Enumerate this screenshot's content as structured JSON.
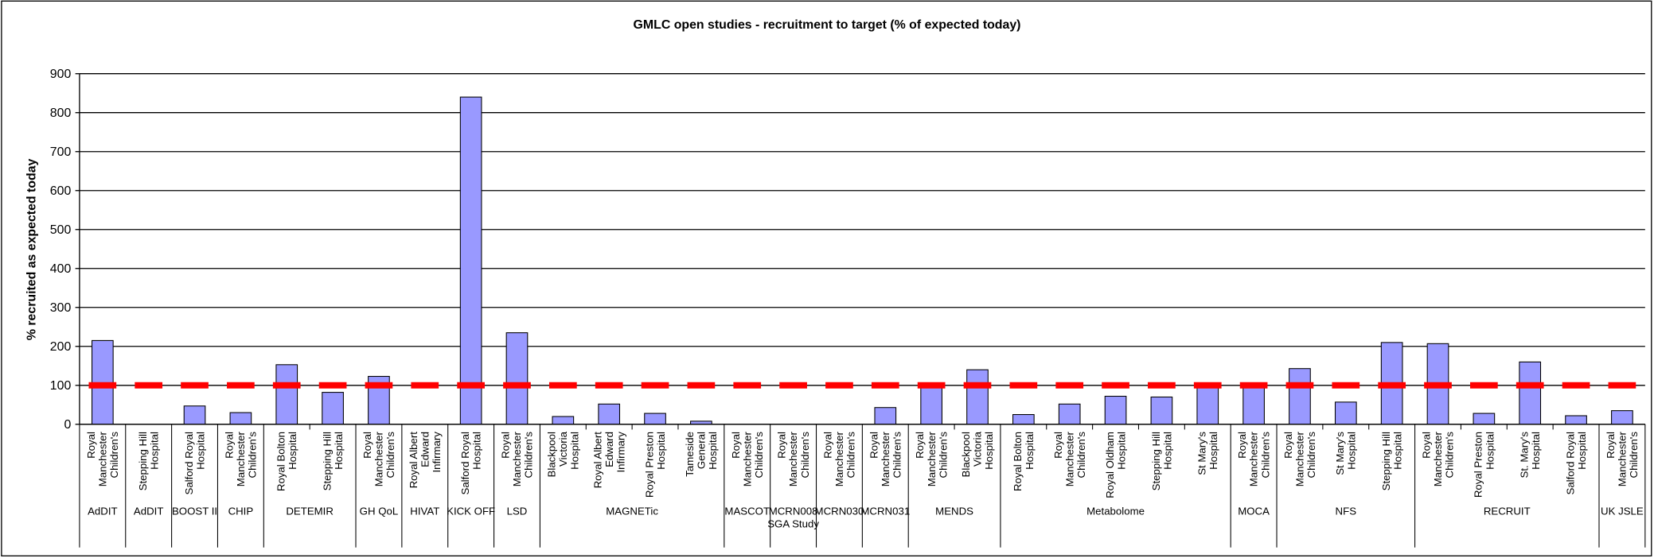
{
  "chart_data": {
    "type": "bar",
    "title": "GMLC open studies - recruitment to target (% of expected today)",
    "y_label": "% recruited as expected today",
    "ylim": [
      0,
      900
    ],
    "yticks": [
      0,
      100,
      200,
      300,
      400,
      500,
      600,
      700,
      800,
      900
    ],
    "grid": true,
    "color": "#9999ff",
    "reference_line": {
      "value": 100,
      "color": "#ff0000"
    },
    "groups": [
      {
        "label": "AdDIT",
        "categories": [
          "Royal Manchester Children's"
        ],
        "values": [
          215
        ]
      },
      {
        "label": "AdDIT",
        "categories": [
          "Stepping Hill Hospital"
        ],
        "values": [
          0
        ]
      },
      {
        "label": "BOOST II",
        "categories": [
          "Salford Royal Hospital"
        ],
        "values": [
          47
        ]
      },
      {
        "label": "CHIP",
        "categories": [
          "Royal Manchester Children's"
        ],
        "values": [
          30
        ]
      },
      {
        "label": "DETEMIR",
        "categories": [
          "Royal Bolton Hospital",
          "Stepping Hill Hospital"
        ],
        "values": [
          153,
          82
        ]
      },
      {
        "label": "GH QoL",
        "categories": [
          "Royal Manchester Children's"
        ],
        "values": [
          123
        ]
      },
      {
        "label": "HIVAT",
        "categories": [
          "Royal Albert Edward Infirmary"
        ],
        "values": [
          0
        ]
      },
      {
        "label": "KICK OFF",
        "categories": [
          "Salford Royal Hospital"
        ],
        "values": [
          840
        ]
      },
      {
        "label": "LSD",
        "categories": [
          "Royal Manchester Children's"
        ],
        "values": [
          235
        ]
      },
      {
        "label": "MAGNETic",
        "categories": [
          "Blackpool Victoria Hospital",
          "Royal Albert Edward Infirmary",
          "Royal Preston Hospital",
          "Tameside General Hospital"
        ],
        "values": [
          20,
          52,
          28,
          8
        ]
      },
      {
        "label": "MASCOT",
        "categories": [
          "Royal Manchester Children's"
        ],
        "values": [
          0
        ]
      },
      {
        "label": "MCRN008 SGA Study",
        "categories": [
          "Royal Manchester Children's"
        ],
        "values": [
          0
        ]
      },
      {
        "label": "MCRN030",
        "categories": [
          "Royal Manchester Children's"
        ],
        "values": [
          0
        ]
      },
      {
        "label": "MCRN031",
        "categories": [
          "Royal Manchester Children's"
        ],
        "values": [
          43
        ]
      },
      {
        "label": "MENDS",
        "categories": [
          "Royal Manchester Children's",
          "Blackpool Victoria Hospital"
        ],
        "values": [
          100,
          140
        ]
      },
      {
        "label": "Metabolome",
        "categories": [
          "Royal Bolton Hospital",
          "Royal Manchester Children's",
          "Royal Oldham Hospital",
          "Stepping Hill Hospital",
          "St Mary's Hospital"
        ],
        "values": [
          25,
          52,
          72,
          70,
          100
        ]
      },
      {
        "label": "MOCA",
        "categories": [
          "Royal Manchester Children's"
        ],
        "values": [
          105
        ]
      },
      {
        "label": "NFS",
        "categories": [
          "Royal Manchester Children's",
          "St Mary's Hospital",
          "Stepping Hill Hospital"
        ],
        "values": [
          143,
          57,
          210
        ]
      },
      {
        "label": "RECRUIT",
        "categories": [
          "Royal Manchester Children's",
          "Royal Preston Hospital",
          "St. Mary's Hospital",
          "Salford Royal Hospital"
        ],
        "values": [
          207,
          28,
          160,
          22
        ]
      },
      {
        "label": "UK JSLE",
        "categories": [
          "Royal Manchester Children's"
        ],
        "values": [
          35
        ]
      }
    ]
  }
}
